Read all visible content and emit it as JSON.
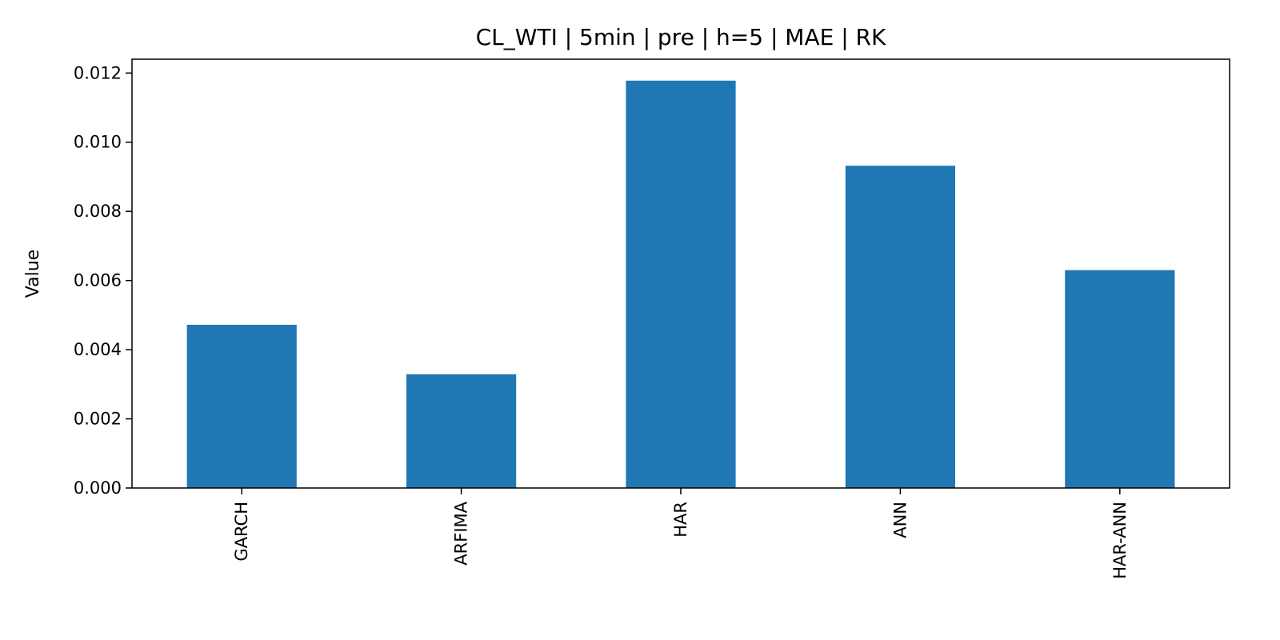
{
  "chart_data": {
    "type": "bar",
    "title": "CL_WTI | 5min | pre | h=5 | MAE | RK",
    "xlabel": "",
    "ylabel": "Value",
    "categories": [
      "GARCH",
      "ARFIMA",
      "HAR",
      "ANN",
      "HAR-ANN"
    ],
    "values": [
      0.00472,
      0.00329,
      0.01178,
      0.00932,
      0.0063
    ],
    "ylim": [
      0,
      0.0124
    ],
    "yticks": [
      "0.000",
      "0.002",
      "0.004",
      "0.006",
      "0.008",
      "0.010",
      "0.012"
    ],
    "grid": false,
    "legend": "none",
    "bar_color": "#1f77b4"
  }
}
